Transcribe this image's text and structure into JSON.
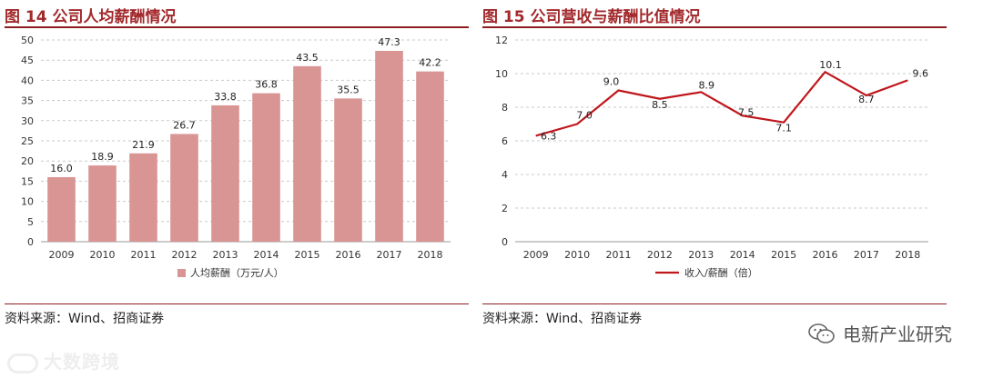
{
  "left": {
    "title": "图 14  公司人均薪酬情况",
    "source": "资料来源：Wind、招商证券"
  },
  "right": {
    "title": "图 15  公司营收与薪酬比值情况",
    "source": "资料来源：Wind、招商证券"
  },
  "watermarks": {
    "left_text": "大数跨境",
    "right_text": "电新产业研究"
  },
  "chart_data": [
    {
      "type": "bar",
      "categories": [
        "2009",
        "2010",
        "2011",
        "2012",
        "2013",
        "2014",
        "2015",
        "2016",
        "2017",
        "2018"
      ],
      "series": [
        {
          "name": "人均薪酬（万元/人）",
          "values": [
            16.0,
            18.9,
            21.9,
            26.7,
            33.8,
            36.8,
            43.5,
            35.5,
            47.3,
            42.2
          ],
          "color": "#d99594"
        }
      ],
      "ylim": [
        0,
        50
      ],
      "yticks": [
        0,
        5,
        10,
        15,
        20,
        25,
        30,
        35,
        40,
        45,
        50
      ],
      "grid": true,
      "legend": "bottom"
    },
    {
      "type": "line",
      "categories": [
        "2009",
        "2010",
        "2011",
        "2012",
        "2013",
        "2014",
        "2015",
        "2016",
        "2017",
        "2018"
      ],
      "series": [
        {
          "name": "收入/薪酬（倍）",
          "values": [
            6.3,
            7.0,
            9.0,
            8.5,
            8.9,
            7.5,
            7.1,
            10.1,
            8.7,
            9.6
          ],
          "color": "#c0171c"
        }
      ],
      "ylim": [
        0,
        12
      ],
      "yticks": [
        0,
        2,
        4,
        6,
        8,
        10,
        12
      ],
      "grid": true,
      "legend": "bottom"
    }
  ]
}
